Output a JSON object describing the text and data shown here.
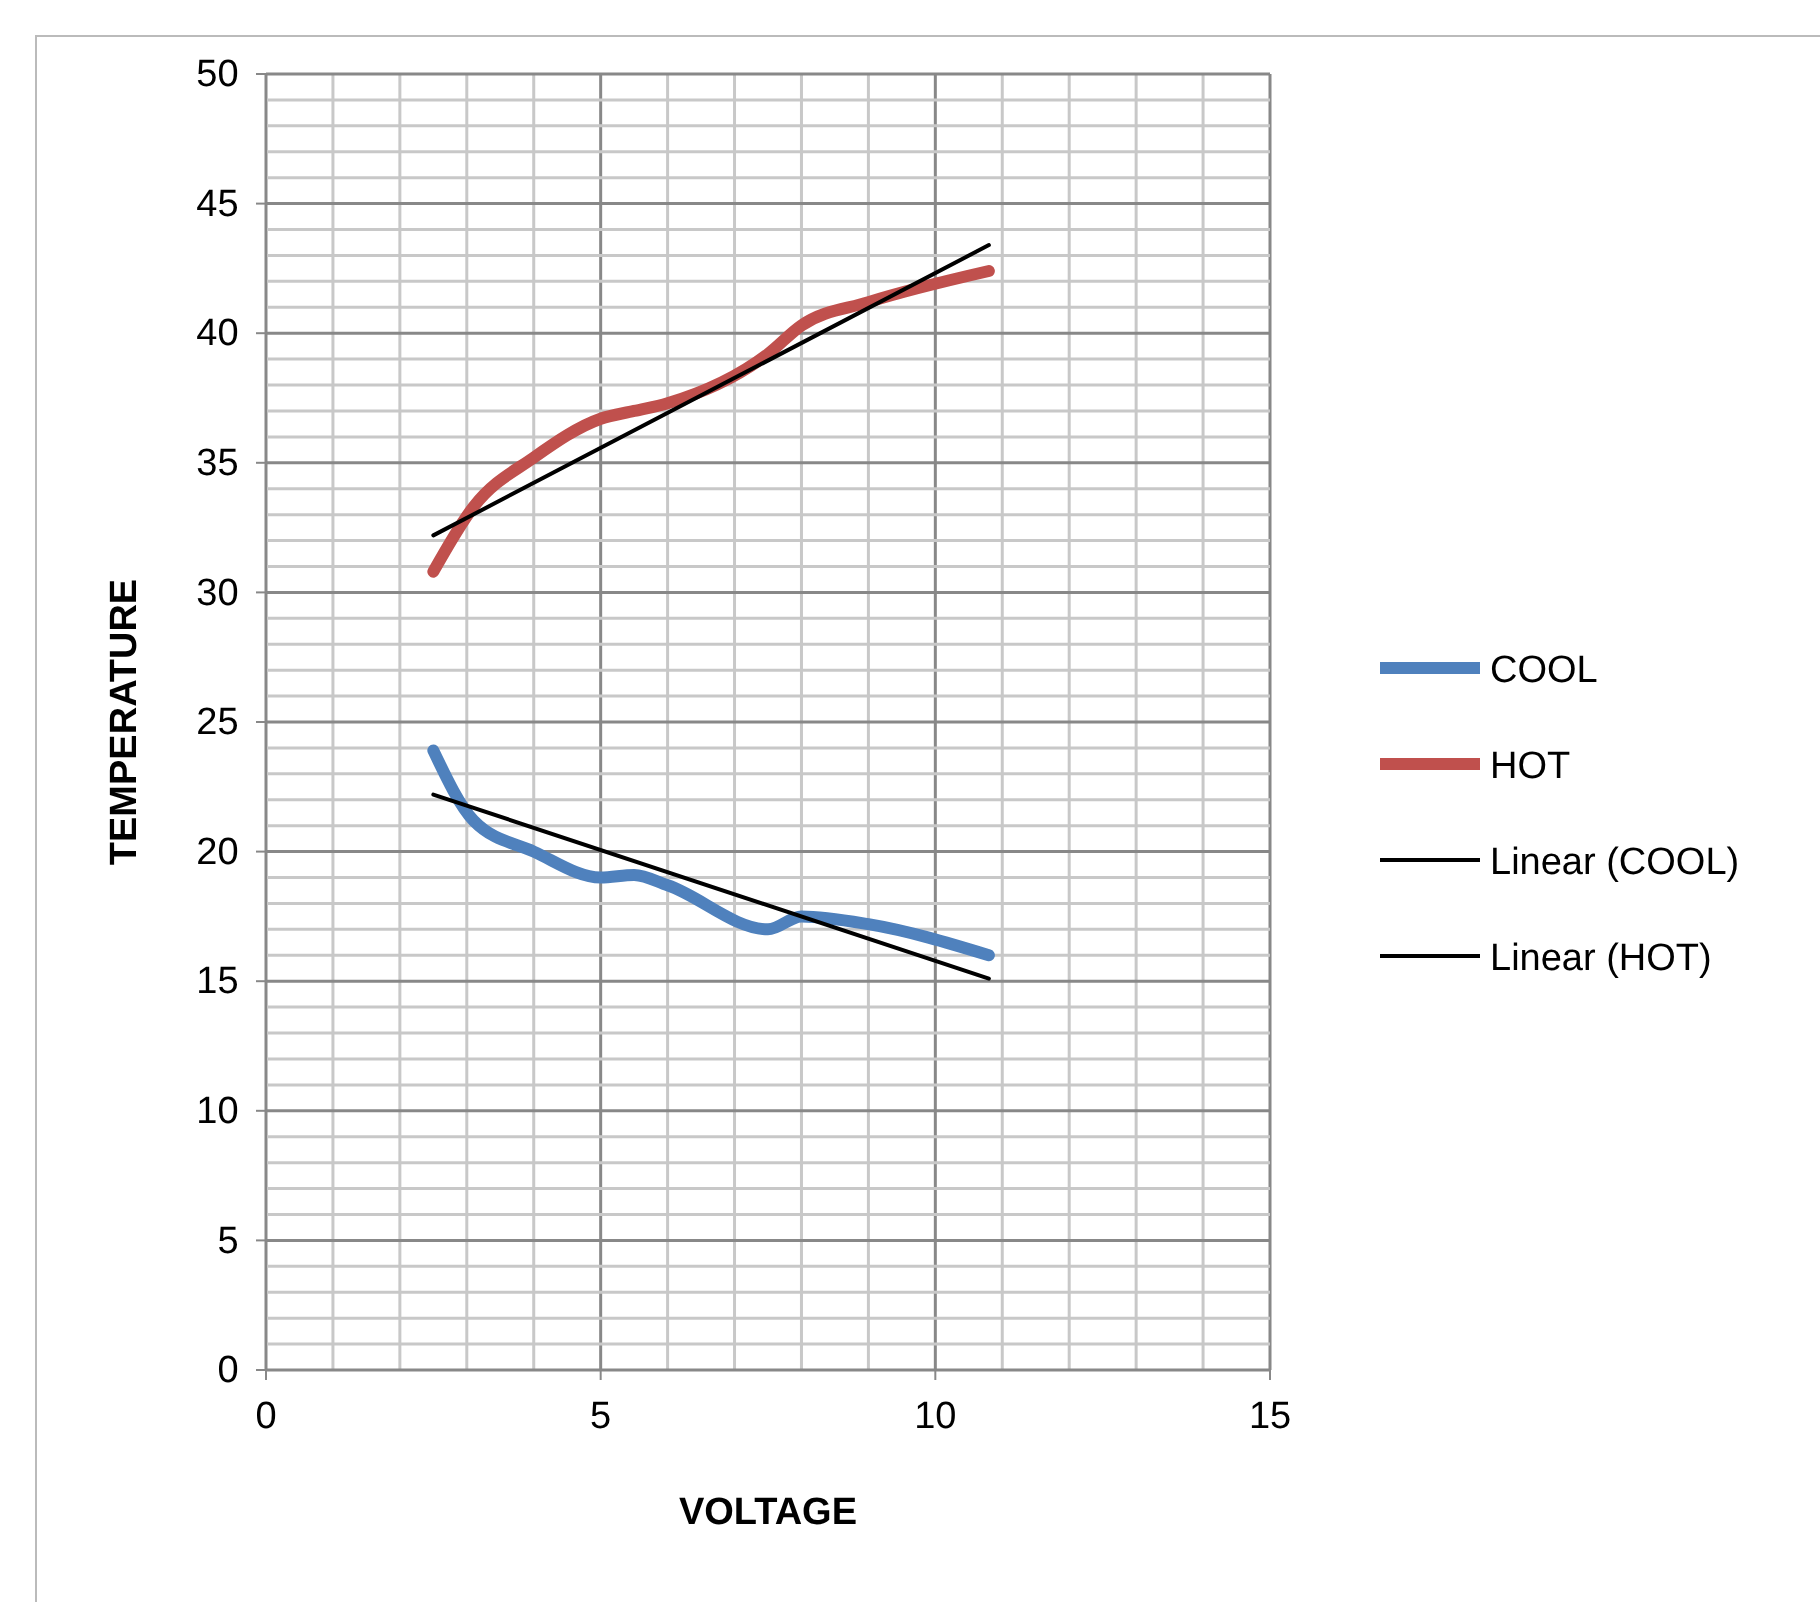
{
  "chart_data": {
    "type": "line",
    "xlabel": "VOLTAGE",
    "ylabel": "TEMPERATURE",
    "xlim": [
      0,
      15
    ],
    "xticks": [
      0,
      5,
      10,
      15
    ],
    "ylim": [
      0,
      50
    ],
    "yticks": [
      0,
      5,
      10,
      15,
      20,
      25,
      30,
      35,
      40,
      45,
      50
    ],
    "grid": true,
    "legend": "right",
    "series": [
      {
        "name": "COOL",
        "color": "#4f81bd",
        "x": [
          2.5,
          3.1,
          4,
          5,
          5.5,
          6,
          7.5,
          8,
          9,
          10.8
        ],
        "values": [
          23.9,
          21.2,
          20.0,
          19.0,
          19.1,
          18.7,
          17.0,
          17.5,
          17.2,
          16.0
        ]
      },
      {
        "name": "HOT",
        "color": "#c0504d",
        "x": [
          2.5,
          3.1,
          4,
          5,
          5.5,
          6,
          7.5,
          8,
          9,
          10.8
        ],
        "values": [
          30.8,
          33.3,
          35.2,
          36.7,
          37.0,
          37.3,
          39.2,
          40.3,
          41.2,
          42.4
        ]
      },
      {
        "name": "Linear (COOL)",
        "color": "#000000",
        "x": [
          2.5,
          10.8
        ],
        "values": [
          22.2,
          15.1
        ]
      },
      {
        "name": "Linear (HOT)",
        "color": "#000000",
        "x": [
          2.5,
          10.8
        ],
        "values": [
          32.2,
          43.4
        ]
      }
    ]
  }
}
